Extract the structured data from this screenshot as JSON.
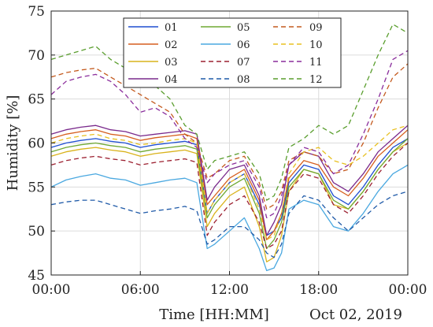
{
  "chart_data": {
    "type": "line",
    "xlabel": "Time [HH:MM]",
    "ylabel": "Humidity [%]",
    "date_note": "Oct 02, 2019",
    "xlim": [
      0,
      24
    ],
    "ylim": [
      45,
      75
    ],
    "x_ticks": [
      0,
      6,
      12,
      18,
      24
    ],
    "x_tick_labels": [
      "00:00",
      "06:00",
      "12:00",
      "18:00",
      "00:00"
    ],
    "y_ticks": [
      45,
      50,
      55,
      60,
      65,
      70,
      75
    ],
    "grid": true,
    "legend_position": "top-right",
    "x": [
      0,
      1,
      2,
      3,
      4,
      5,
      6,
      7,
      8,
      9,
      9.8,
      10.5,
      11,
      12,
      13,
      14,
      14.5,
      15,
      15.5,
      16,
      17,
      18,
      19,
      20,
      21,
      22,
      23,
      24
    ],
    "series": [
      {
        "name": "01",
        "color": "#1f4fd1",
        "dash": "solid",
        "values": [
          59.5,
          60.0,
          60.3,
          60.5,
          60.2,
          60.0,
          59.5,
          59.8,
          60.0,
          60.2,
          59.8,
          52.0,
          53.5,
          55.5,
          56.5,
          53.0,
          49.5,
          50.0,
          51.5,
          55.5,
          57.5,
          57.0,
          54.0,
          53.0,
          55.0,
          57.5,
          59.5,
          60.5
        ]
      },
      {
        "name": "02",
        "color": "#d65f1e",
        "dash": "solid",
        "values": [
          60.5,
          61.0,
          61.3,
          61.5,
          61.0,
          60.8,
          60.3,
          60.6,
          60.8,
          61.0,
          60.5,
          53.0,
          54.0,
          56.0,
          57.0,
          53.5,
          49.0,
          50.0,
          52.0,
          56.0,
          58.0,
          57.5,
          55.0,
          54.0,
          56.0,
          58.5,
          60.0,
          61.5
        ]
      },
      {
        "name": "03",
        "color": "#d9b31c",
        "dash": "solid",
        "values": [
          58.5,
          59.0,
          59.3,
          59.5,
          59.2,
          59.0,
          58.5,
          58.8,
          59.0,
          59.2,
          58.8,
          50.5,
          52.0,
          54.0,
          55.0,
          50.5,
          46.5,
          47.0,
          49.5,
          54.5,
          57.0,
          56.5,
          53.0,
          52.5,
          54.5,
          57.0,
          59.0,
          60.0
        ]
      },
      {
        "name": "04",
        "color": "#7a2a8c",
        "dash": "solid",
        "values": [
          61.0,
          61.5,
          61.8,
          62.0,
          61.5,
          61.3,
          60.8,
          61.0,
          61.2,
          61.4,
          61.0,
          53.5,
          55.0,
          57.0,
          57.5,
          54.0,
          49.5,
          51.0,
          53.0,
          57.5,
          59.0,
          58.5,
          55.5,
          54.5,
          56.5,
          59.0,
          60.5,
          62.0
        ]
      },
      {
        "name": "05",
        "color": "#6fa832",
        "dash": "solid",
        "values": [
          59.0,
          59.5,
          59.8,
          60.0,
          59.7,
          59.5,
          59.0,
          59.3,
          59.5,
          59.7,
          59.3,
          51.5,
          53.0,
          55.0,
          56.0,
          52.0,
          48.0,
          49.0,
          51.0,
          55.0,
          57.0,
          56.5,
          53.5,
          52.5,
          54.5,
          57.0,
          59.0,
          60.5
        ]
      },
      {
        "name": "06",
        "color": "#4aa8e0",
        "dash": "solid",
        "values": [
          55.0,
          55.8,
          56.2,
          56.5,
          56.0,
          55.8,
          55.2,
          55.5,
          55.8,
          56.0,
          55.5,
          48.0,
          48.5,
          50.0,
          51.5,
          48.0,
          45.5,
          45.8,
          47.5,
          52.5,
          53.5,
          53.0,
          50.5,
          50.0,
          52.0,
          54.5,
          56.5,
          57.5
        ]
      },
      {
        "name": "07",
        "color": "#9c2030",
        "dash": "dashed",
        "values": [
          57.5,
          58.0,
          58.3,
          58.5,
          58.2,
          58.0,
          57.5,
          57.8,
          58.0,
          58.2,
          57.8,
          49.5,
          51.0,
          53.0,
          54.0,
          51.0,
          48.0,
          48.5,
          50.0,
          54.5,
          56.5,
          56.0,
          53.0,
          52.0,
          54.0,
          56.5,
          58.5,
          60.0
        ]
      },
      {
        "name": "08",
        "color": "#1f5aa8",
        "dash": "dashed",
        "values": [
          53.0,
          53.3,
          53.5,
          53.5,
          53.0,
          52.5,
          52.0,
          52.3,
          52.5,
          52.8,
          52.3,
          48.5,
          49.0,
          50.5,
          50.5,
          49.0,
          47.5,
          47.0,
          48.5,
          52.0,
          54.0,
          53.5,
          51.5,
          50.0,
          51.5,
          53.0,
          54.0,
          54.5
        ]
      },
      {
        "name": "09",
        "color": "#c45a1e",
        "dash": "dashed",
        "values": [
          67.5,
          68.0,
          68.3,
          68.5,
          67.5,
          66.5,
          65.5,
          64.5,
          63.5,
          61.0,
          60.0,
          56.0,
          56.5,
          58.0,
          58.5,
          55.5,
          52.5,
          53.0,
          54.5,
          58.0,
          59.0,
          58.5,
          56.5,
          57.0,
          60.0,
          64.0,
          67.5,
          69.0
        ]
      },
      {
        "name": "10",
        "color": "#e8c020",
        "dash": "dashed",
        "values": [
          60.0,
          60.5,
          60.8,
          61.0,
          60.5,
          60.3,
          59.8,
          60.0,
          60.3,
          60.5,
          60.0,
          52.0,
          53.5,
          55.5,
          56.5,
          52.5,
          49.0,
          49.5,
          52.0,
          56.5,
          59.0,
          59.5,
          58.0,
          57.5,
          58.5,
          60.0,
          61.5,
          62.0
        ]
      },
      {
        "name": "11",
        "color": "#8a2d9c",
        "dash": "dashed",
        "values": [
          65.5,
          67.0,
          67.5,
          67.8,
          67.0,
          65.5,
          63.5,
          64.0,
          63.0,
          60.5,
          59.5,
          55.5,
          56.5,
          57.5,
          58.0,
          55.0,
          51.5,
          52.0,
          54.0,
          57.5,
          59.5,
          59.0,
          56.5,
          57.5,
          61.0,
          65.0,
          69.5,
          70.5
        ]
      },
      {
        "name": "12",
        "color": "#5a9e2e",
        "dash": "dashed",
        "values": [
          69.5,
          70.0,
          70.5,
          71.0,
          69.5,
          68.5,
          67.5,
          66.5,
          65.0,
          62.0,
          61.0,
          57.0,
          58.0,
          58.5,
          59.0,
          56.5,
          53.5,
          54.0,
          56.0,
          59.5,
          60.5,
          62.0,
          61.0,
          62.0,
          66.0,
          70.0,
          73.5,
          72.5
        ]
      }
    ]
  }
}
